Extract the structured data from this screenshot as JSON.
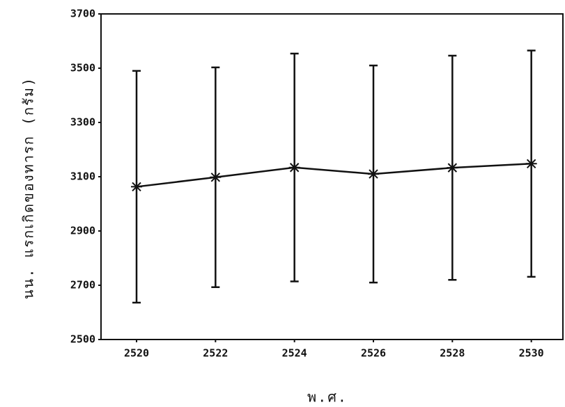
{
  "chart_data": {
    "type": "line",
    "xlabel": "พ.ศ.",
    "ylabel": "นน. แรกเกิดของทารก (กรัม)",
    "x": [
      2520,
      2522,
      2524,
      2526,
      2528,
      2530
    ],
    "series": [
      {
        "color": "#111111",
        "values": [
          3063,
          3098,
          3134,
          3110,
          3133,
          3148
        ],
        "errors": [
          427,
          405,
          420,
          400,
          413,
          417
        ]
      }
    ],
    "xlim": [
      2519.1,
      2530.8
    ],
    "ylim": [
      2500,
      3700
    ],
    "xticks": [
      2520,
      2522,
      2524,
      2526,
      2528,
      2530
    ],
    "yticks": [
      2500,
      2700,
      2900,
      3100,
      3300,
      3500,
      3700
    ]
  }
}
